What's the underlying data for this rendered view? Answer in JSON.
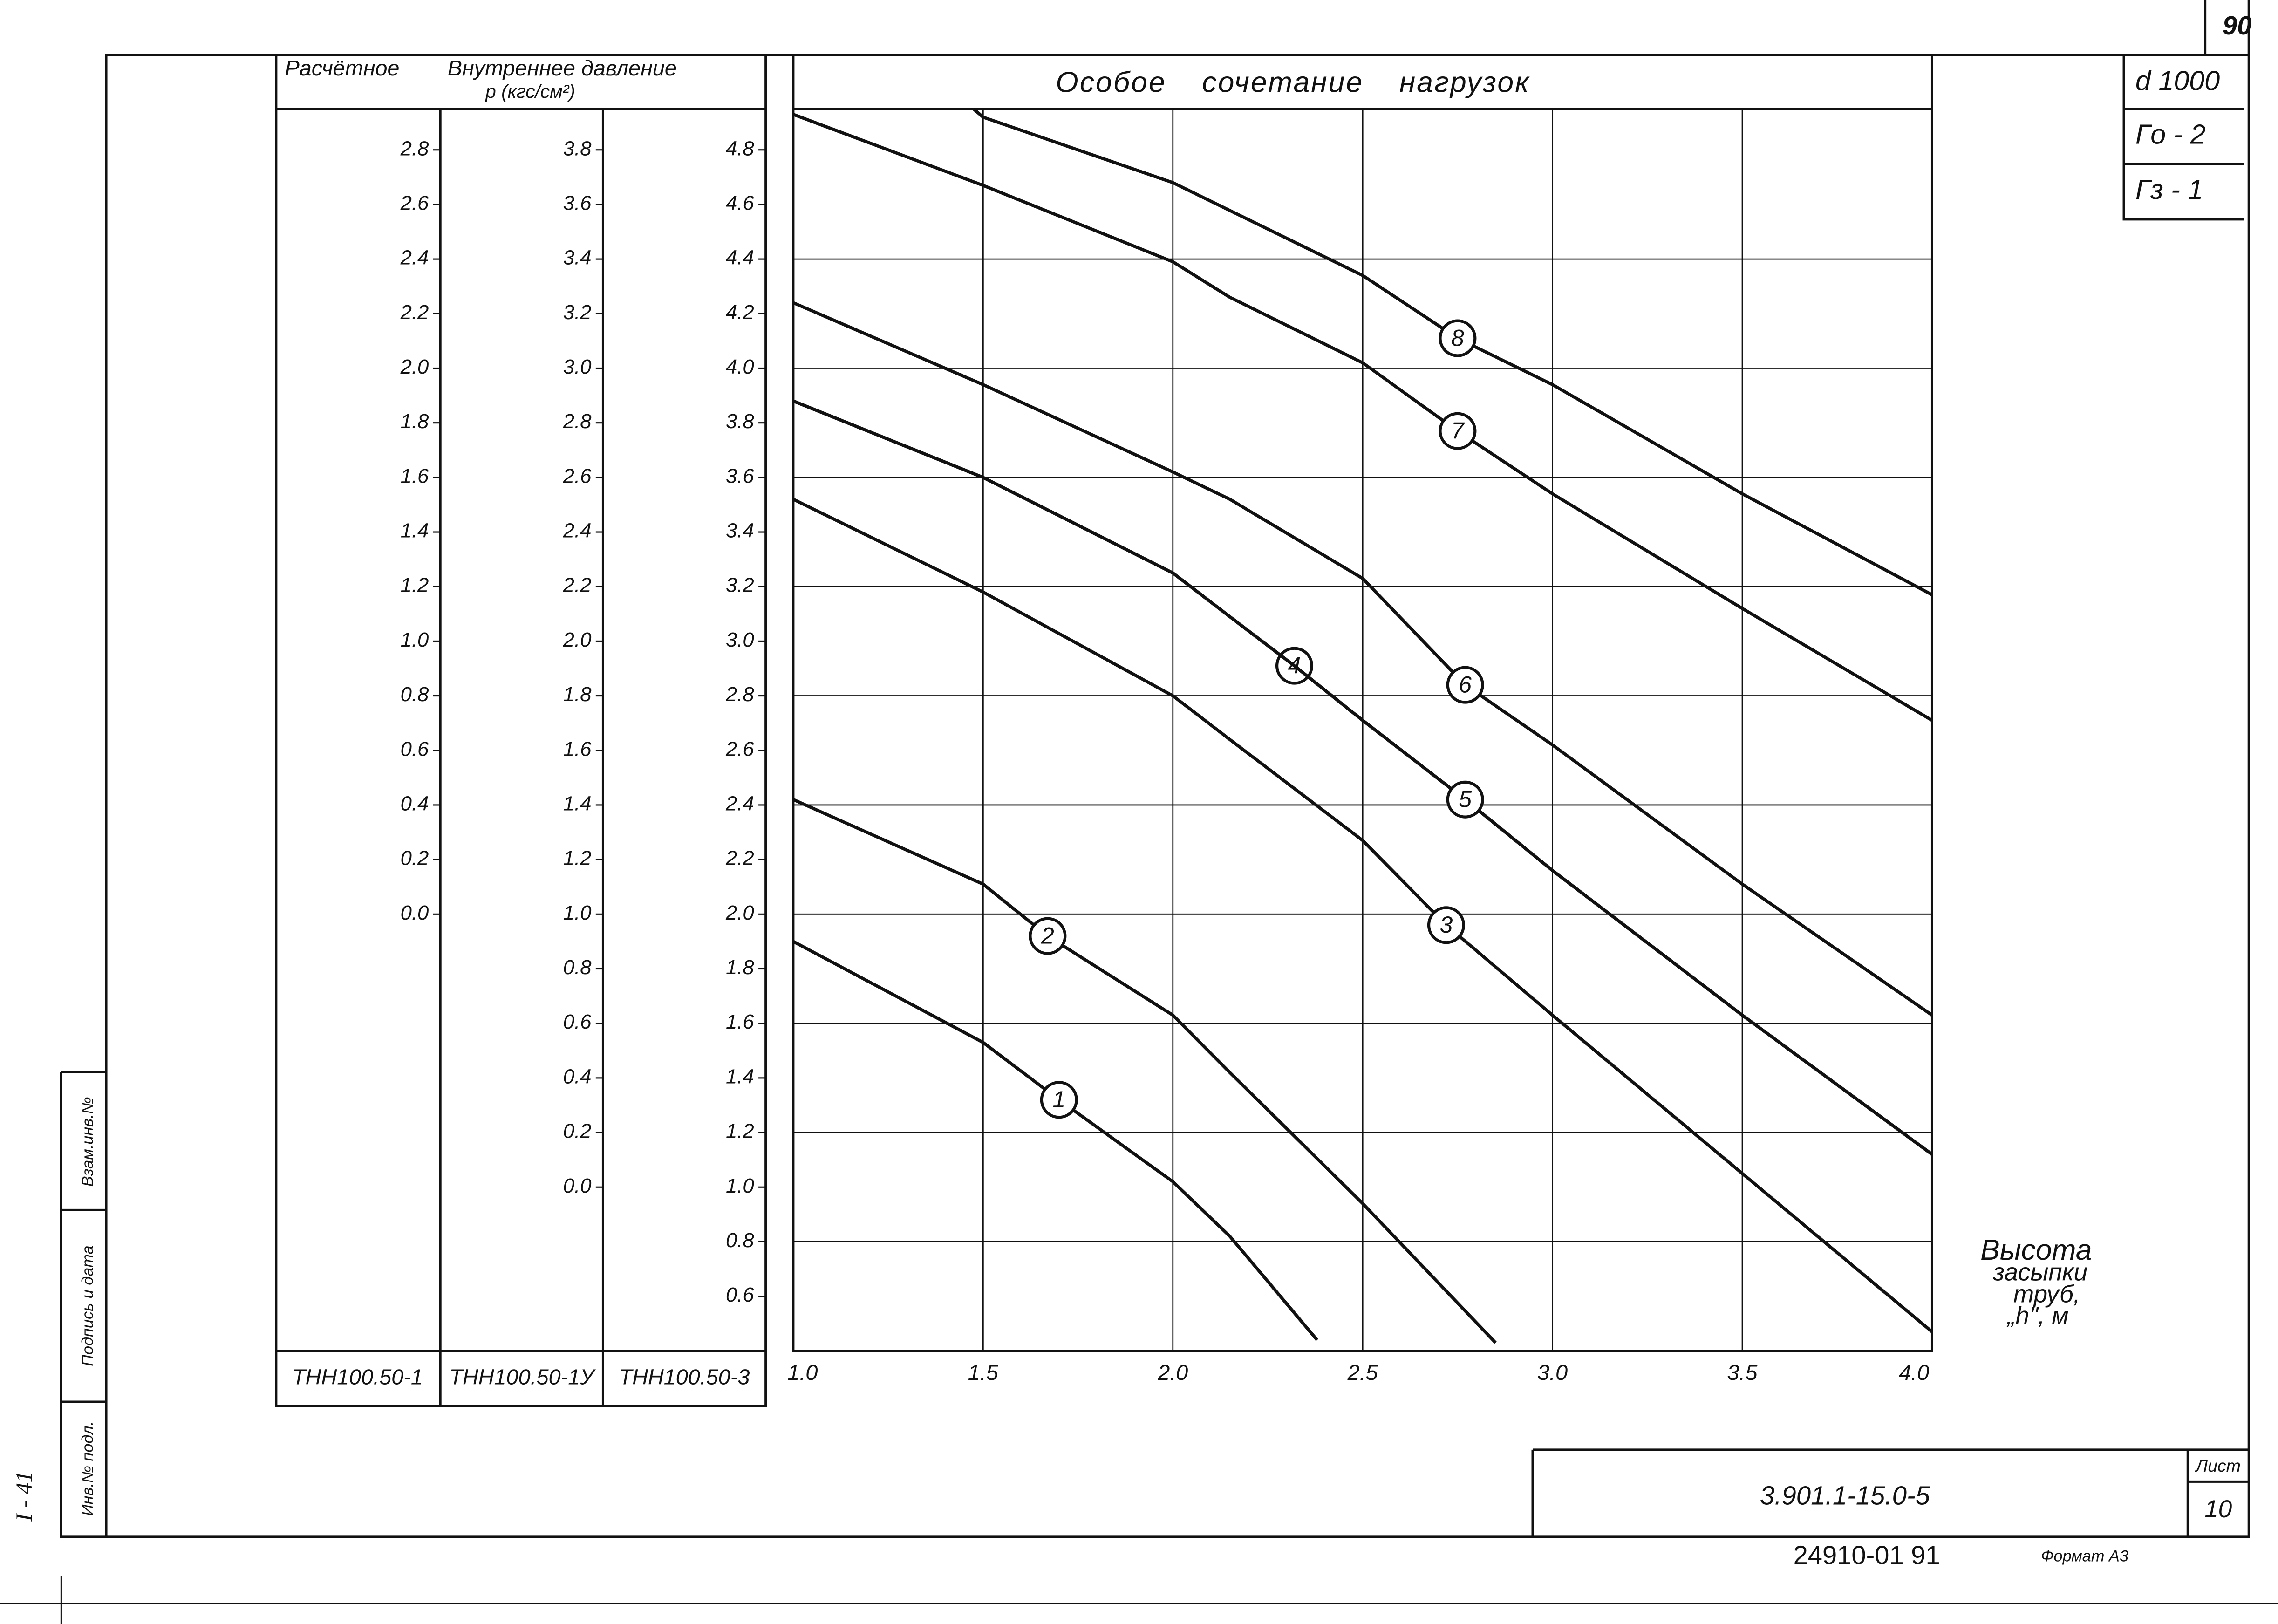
{
  "sheet": {
    "number": "90",
    "stamp": [
      "d 1000",
      "Гo - 2",
      "Гз - 1"
    ],
    "code": "3.901.1-15.0-5",
    "sheet_label": "Лист",
    "sheet_number": "10",
    "footer": "24910-01 91",
    "format": "Формат А3",
    "side_labels": [
      "Инв.№ подл.",
      "Подпись и дата",
      "Взам.инв.№"
    ],
    "side_code": "I - 41"
  },
  "chart_data": {
    "type": "line",
    "title": "Особое сочетание нагрузок",
    "header": [
      "Расчётное",
      "Внутреннее давление",
      "p (кгс/см²)"
    ],
    "xlabel": [
      "Высота",
      "засыпки",
      "труб,",
      "„h\", м"
    ],
    "xlim": [
      1.0,
      4.0
    ],
    "xticks": [
      {
        "value": 1.0,
        "label": "1.0"
      },
      1.5,
      {
        "value": 2.0,
        "label": "2.0"
      },
      2.5,
      {
        "value": 3.0,
        "label": "3.0"
      },
      3.5,
      {
        "value": 4.0,
        "label": "4.0"
      }
    ],
    "grid": true,
    "y_scales": [
      {
        "name": "ТНН100.50-1",
        "ylim": [
          -1.6,
          2.95
        ],
        "yticks": [
          2.8,
          2.6,
          2.4,
          2.2,
          {
            "value": 2.0,
            "label": "2.0"
          },
          1.8,
          1.6,
          1.4,
          1.2,
          {
            "value": 1.0,
            "label": "1.0"
          },
          0.8,
          0.6,
          0.4,
          0.2,
          {
            "value": 0.0,
            "label": "0.0"
          }
        ]
      },
      {
        "name": "ТНН100.50-1У",
        "ylim": [
          -0.6,
          3.95
        ],
        "yticks": [
          3.8,
          3.6,
          3.4,
          3.2,
          {
            "value": 3.0,
            "label": "3.0"
          },
          2.8,
          2.6,
          2.4,
          2.2,
          {
            "value": 2.0,
            "label": "2.0"
          },
          1.8,
          1.6,
          1.4,
          1.2,
          {
            "value": 1.0,
            "label": "1.0"
          },
          0.8,
          0.6,
          0.4,
          0.2,
          {
            "value": 0.0,
            "label": "0.0"
          }
        ]
      },
      {
        "name": "ТНН100.50-3",
        "ylim": [
          0.4,
          4.95
        ],
        "yticks": [
          4.8,
          4.6,
          4.4,
          4.2,
          {
            "value": 4.0,
            "label": "4.0"
          },
          3.8,
          3.6,
          3.4,
          3.2,
          {
            "value": 3.0,
            "label": "3.0"
          },
          2.8,
          2.6,
          2.4,
          2.2,
          {
            "value": 2.0,
            "label": "2.0"
          },
          1.8,
          1.6,
          1.4,
          1.2,
          {
            "value": 1.0,
            "label": "1.0"
          },
          0.8,
          0.6
        ]
      }
    ],
    "series": [
      {
        "name": "1",
        "color": "#111111",
        "x": [
          1.0,
          1.5,
          1.7,
          2.0,
          2.15,
          2.38
        ],
        "values": [
          1.9,
          1.53,
          1.32,
          1.02,
          0.82,
          0.44
        ]
      },
      {
        "name": "2",
        "color": "#111111",
        "x": [
          1.0,
          1.5,
          1.67,
          2.0,
          2.15,
          2.5,
          2.85
        ],
        "values": [
          2.42,
          2.11,
          1.92,
          1.63,
          1.42,
          0.94,
          0.43
        ]
      },
      {
        "name": "3",
        "color": "#111111",
        "x": [
          1.0,
          1.5,
          2.0,
          2.15,
          2.5,
          2.72,
          3.0,
          3.5,
          4.0
        ],
        "values": [
          3.52,
          3.18,
          2.8,
          2.64,
          2.27,
          1.96,
          1.63,
          1.05,
          0.47
        ]
      },
      {
        "name": "4",
        "color": "#111111",
        "x": [
          1.0,
          1.5,
          2.0,
          2.15,
          2.32,
          2.5,
          2.77,
          3.0,
          3.5,
          4.0
        ],
        "values": [
          3.88,
          3.6,
          3.25,
          3.09,
          2.91,
          2.71,
          2.42,
          2.16,
          1.63,
          1.12
        ]
      },
      {
        "name": "5",
        "color": "#111111",
        "x": [
          1.0,
          1.5,
          2.0,
          2.15,
          2.32,
          2.5,
          2.77,
          3.0,
          3.5,
          4.0
        ],
        "values": [
          3.88,
          3.6,
          3.25,
          3.09,
          2.91,
          2.71,
          2.42,
          2.16,
          1.63,
          1.12
        ]
      },
      {
        "name": "6",
        "color": "#111111",
        "x": [
          1.0,
          1.5,
          2.0,
          2.15,
          2.5,
          2.77,
          3.0,
          3.5,
          4.0
        ],
        "values": [
          4.24,
          3.94,
          3.62,
          3.52,
          3.23,
          2.84,
          2.62,
          2.11,
          1.63
        ]
      },
      {
        "name": "7",
        "color": "#111111",
        "x": [
          1.0,
          1.5,
          2.0,
          2.15,
          2.5,
          2.75,
          3.0,
          3.5,
          4.0
        ],
        "values": [
          4.93,
          4.67,
          4.39,
          4.26,
          4.02,
          3.77,
          3.54,
          3.12,
          2.71
        ]
      },
      {
        "name": "8",
        "color": "#111111",
        "x": [
          1.475,
          1.5,
          2.0,
          2.5,
          2.75,
          3.0,
          3.5,
          4.0
        ],
        "values": [
          4.95,
          4.92,
          4.68,
          4.34,
          4.11,
          3.94,
          3.54,
          3.17
        ]
      }
    ]
  }
}
